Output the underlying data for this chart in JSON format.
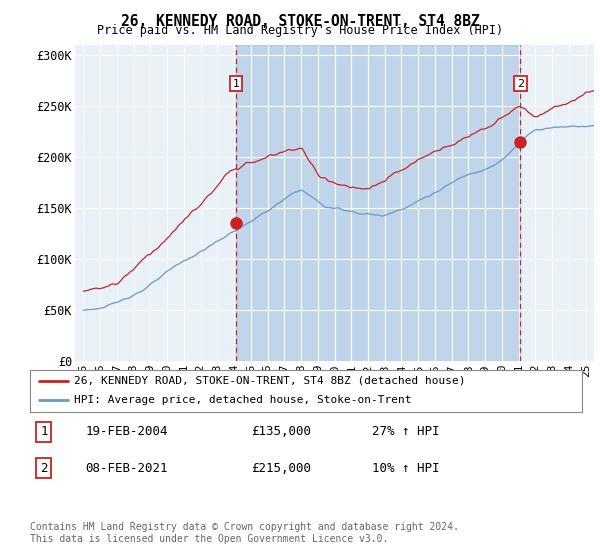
{
  "title": "26, KENNEDY ROAD, STOKE-ON-TRENT, ST4 8BZ",
  "subtitle": "Price paid vs. HM Land Registry's House Price Index (HPI)",
  "ylabel_ticks": [
    "£0",
    "£50K",
    "£100K",
    "£150K",
    "£200K",
    "£250K",
    "£300K"
  ],
  "ytick_values": [
    0,
    50000,
    100000,
    150000,
    200000,
    250000,
    300000
  ],
  "ylim": [
    0,
    310000
  ],
  "xlim_start": 1994.5,
  "xlim_end": 2025.5,
  "hpi_color": "#6699cc",
  "price_color": "#cc2222",
  "fill_color": "#ddeeff",
  "marker1_year": 2004.12,
  "marker1_price": 135000,
  "marker2_year": 2021.1,
  "marker2_price": 215000,
  "legend_line1": "26, KENNEDY ROAD, STOKE-ON-TRENT, ST4 8BZ (detached house)",
  "legend_line2": "HPI: Average price, detached house, Stoke-on-Trent",
  "footer": "Contains HM Land Registry data © Crown copyright and database right 2024.\nThis data is licensed under the Open Government Licence v3.0.",
  "background_color": "#ffffff",
  "grid_color": "#cccccc",
  "chart_bg": "#e8f0f8"
}
